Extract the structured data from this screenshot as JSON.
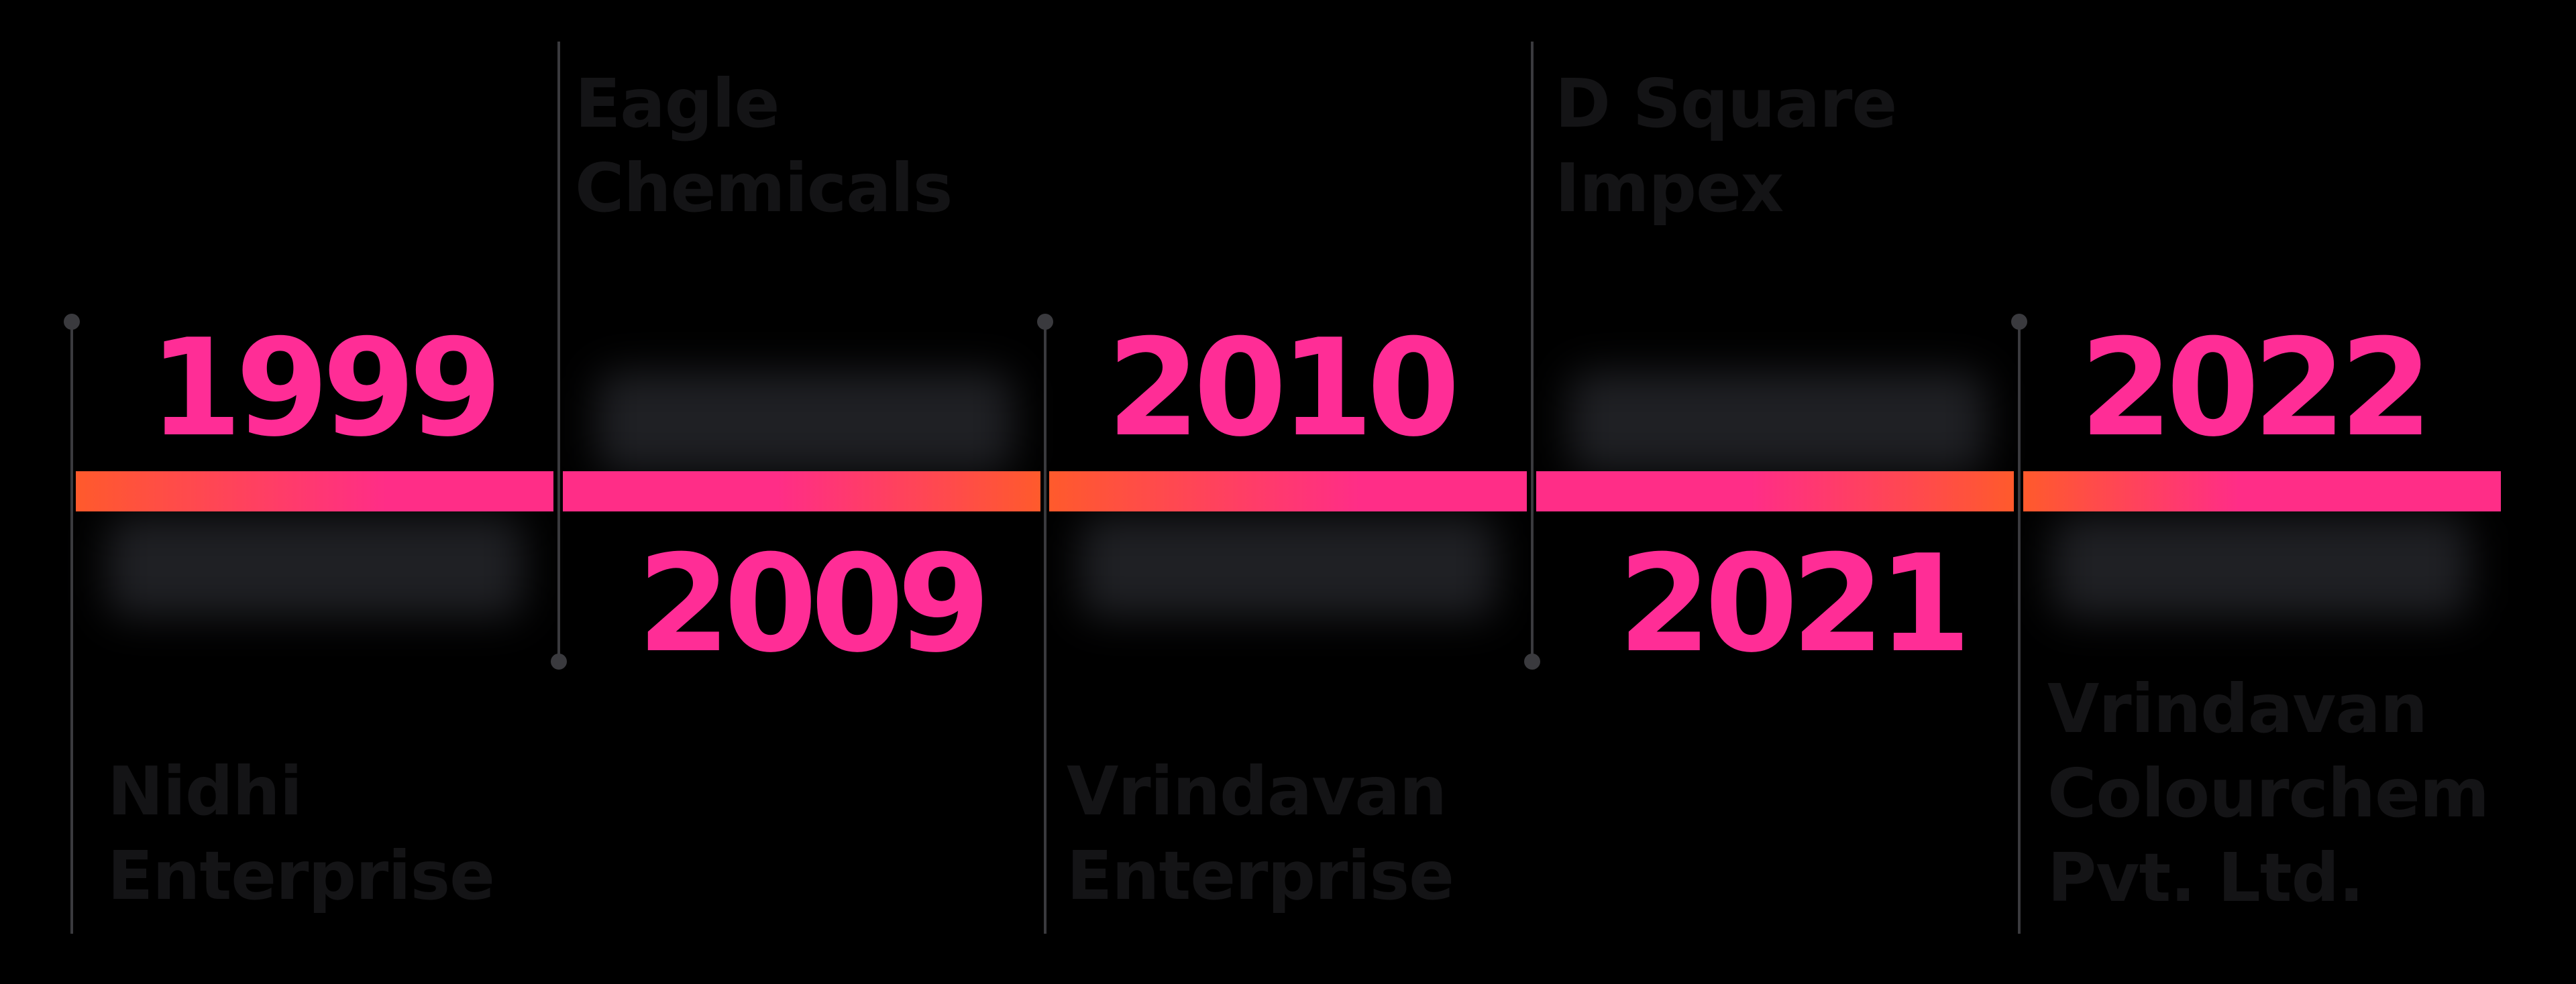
{
  "timeline": {
    "events": [
      {
        "year": "1999",
        "company": "Nidhi\nEnterprise"
      },
      {
        "year": "2009",
        "company": "Eagle\nChemicals"
      },
      {
        "year": "2010",
        "company": "Vrindavan\nEnterprise"
      },
      {
        "year": "2021",
        "company": "D Square\nImpex"
      },
      {
        "year": "2022",
        "company": "Vrindavan\nColourchem\nPvt. Ltd."
      }
    ]
  },
  "colors": {
    "background": "#000000",
    "year_text": "#ff2d96",
    "bar_orange": "#ff5a2c",
    "bar_pink": "#ff2d87",
    "connector": "#3a3a3e",
    "company_text": "#141416"
  }
}
